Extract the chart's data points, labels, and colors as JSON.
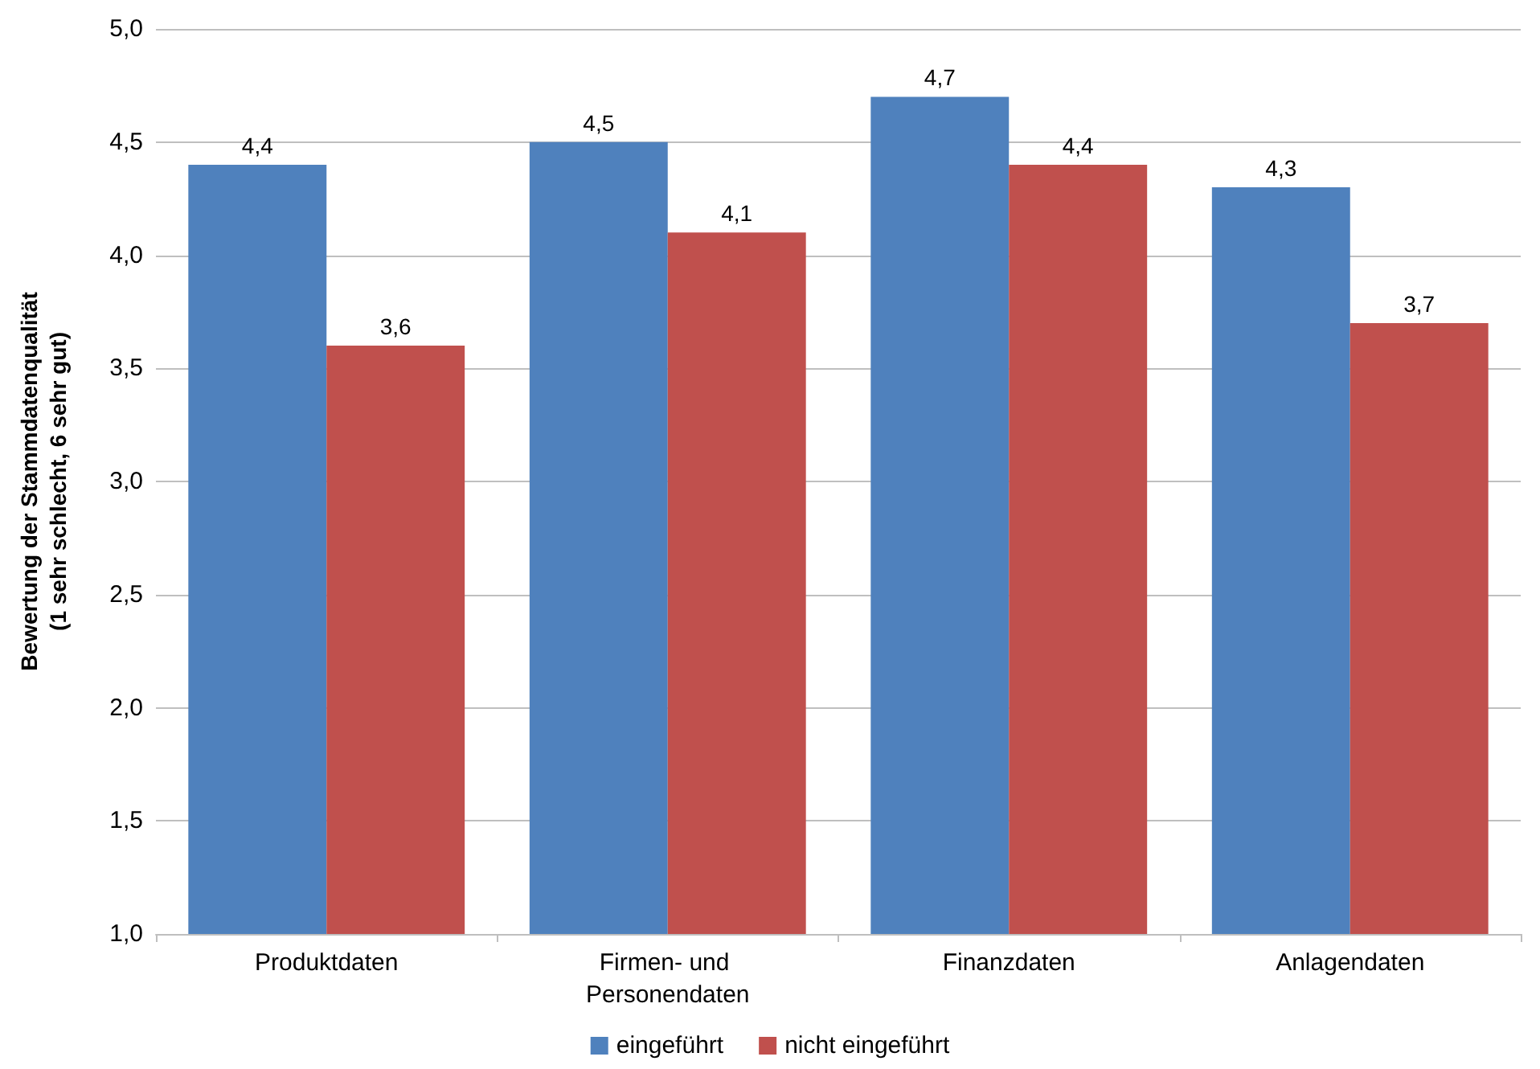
{
  "chart_data": {
    "type": "bar",
    "ylabel": "Bewertung der Stammdatenqualität\n(1 sehr schlecht, 6 sehr gut)",
    "categories": [
      "Produktdaten",
      "Firmen- und Personendaten",
      "Finanzdaten",
      "Anlagendaten"
    ],
    "series": [
      {
        "name": "eingeführt",
        "color": "#4f81bd",
        "values": [
          4.4,
          4.5,
          4.7,
          4.3
        ],
        "value_labels": [
          "4,4",
          "4,5",
          "4,7",
          "4,3"
        ]
      },
      {
        "name": "nicht eingeführt",
        "color": "#c0504d",
        "values": [
          3.6,
          4.1,
          4.4,
          3.7
        ],
        "value_labels": [
          "3,6",
          "4,1",
          "4,4",
          "3,7"
        ]
      }
    ],
    "ylim": [
      1,
      5
    ],
    "yticks": [
      {
        "value": 1,
        "label": "1,0"
      },
      {
        "value": 1.5,
        "label": "1,5"
      },
      {
        "value": 2,
        "label": "2,0"
      },
      {
        "value": 2.5,
        "label": "2,5"
      },
      {
        "value": 3,
        "label": "3,0"
      },
      {
        "value": 3.5,
        "label": "3,5"
      },
      {
        "value": 4,
        "label": "4,0"
      },
      {
        "value": 4.5,
        "label": "4,5"
      },
      {
        "value": 5,
        "label": "5,0"
      }
    ],
    "grid": "y",
    "legend": "bottom"
  }
}
